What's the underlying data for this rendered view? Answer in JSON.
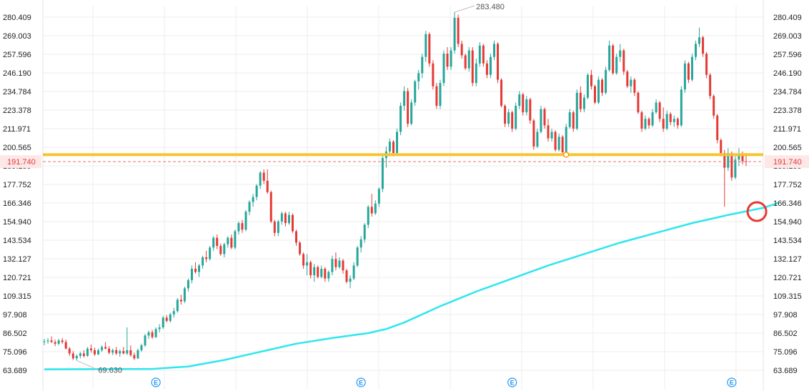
{
  "chart_data": {
    "type": "candlestick",
    "y_axis": {
      "ticks": [
        "63.689",
        "75.096",
        "86.502",
        "97.908",
        "109.315",
        "120.721",
        "132.127",
        "143.534",
        "154.940",
        "166.346",
        "177.752",
        "189.159",
        "200.565",
        "211.971",
        "223.378",
        "234.784",
        "246.190",
        "257.596",
        "269.003",
        "280.409"
      ],
      "range": [
        63.689,
        285.0
      ]
    },
    "annotations": {
      "high_label": "283.480",
      "high_value": 283.48,
      "low_label": "69.630",
      "low_value": 69.63,
      "current_price_label": "191.740",
      "current_price": 191.74,
      "support_level": 196.0,
      "support_touch_index": 145,
      "circle_index": 198
    },
    "event_markers": {
      "label": "E",
      "indices": [
        31,
        88,
        130,
        191
      ]
    },
    "colors": {
      "up": "#26a69a",
      "down": "#e53935",
      "moving_average": "#2ee6ee",
      "support_line": "#f6c431",
      "price_line": "#e57373",
      "circle": "#e53935",
      "grid": "#eeeeee",
      "event": "#2196f3"
    },
    "candles": [
      [
        81.0,
        83.0,
        79.0,
        81.5
      ],
      [
        81.5,
        83.5,
        80.0,
        82.0
      ],
      [
        82.0,
        84.5,
        80.5,
        81.0
      ],
      [
        81.0,
        82.5,
        78.5,
        80.0
      ],
      [
        80.0,
        83.0,
        79.0,
        82.0
      ],
      [
        82.0,
        83.5,
        80.0,
        81.0
      ],
      [
        81.0,
        82.5,
        76.5,
        77.0
      ],
      [
        77.0,
        78.0,
        72.5,
        74.0
      ],
      [
        74.0,
        75.5,
        70.0,
        71.0
      ],
      [
        71.0,
        73.5,
        69.63,
        72.5
      ],
      [
        72.5,
        75.0,
        71.0,
        74.0
      ],
      [
        74.0,
        76.0,
        71.5,
        72.5
      ],
      [
        72.5,
        78.0,
        72.0,
        77.0
      ],
      [
        77.0,
        79.5,
        74.5,
        76.0
      ],
      [
        76.0,
        77.5,
        72.5,
        73.5
      ],
      [
        73.5,
        77.0,
        73.0,
        76.0
      ],
      [
        76.0,
        79.0,
        75.0,
        78.0
      ],
      [
        78.0,
        81.0,
        76.5,
        77.0
      ],
      [
        77.0,
        78.5,
        73.5,
        74.5
      ],
      [
        74.5,
        77.0,
        73.0,
        76.0
      ],
      [
        76.0,
        78.0,
        73.0,
        74.0
      ],
      [
        74.0,
        76.5,
        72.0,
        75.5
      ],
      [
        75.5,
        78.0,
        73.5,
        74.0
      ],
      [
        74.0,
        90.0,
        73.0,
        76.0
      ],
      [
        76.0,
        79.0,
        72.0,
        73.0
      ],
      [
        73.0,
        74.5,
        70.0,
        71.0
      ],
      [
        71.0,
        77.0,
        70.5,
        76.0
      ],
      [
        76.0,
        80.0,
        75.0,
        79.0
      ],
      [
        79.0,
        86.0,
        78.0,
        85.0
      ],
      [
        85.0,
        88.0,
        83.0,
        87.0
      ],
      [
        87.0,
        88.5,
        83.0,
        84.0
      ],
      [
        84.0,
        90.0,
        83.5,
        89.0
      ],
      [
        89.0,
        92.0,
        87.0,
        90.0
      ],
      [
        90.0,
        97.0,
        89.0,
        96.0
      ],
      [
        96.0,
        97.5,
        93.0,
        94.0
      ],
      [
        94.0,
        99.0,
        93.0,
        98.0
      ],
      [
        98.0,
        102.0,
        96.0,
        100.0
      ],
      [
        100.0,
        108.0,
        99.0,
        107.0
      ],
      [
        107.0,
        110.0,
        104.0,
        106.0
      ],
      [
        106.0,
        115.0,
        105.0,
        114.0
      ],
      [
        114.0,
        120.0,
        112.0,
        119.0
      ],
      [
        119.0,
        128.0,
        117.0,
        126.0
      ],
      [
        126.0,
        130.0,
        123.0,
        124.0
      ],
      [
        124.0,
        129.0,
        121.0,
        128.0
      ],
      [
        128.0,
        134.0,
        126.0,
        133.0
      ],
      [
        133.0,
        137.0,
        130.0,
        132.0
      ],
      [
        132.0,
        140.0,
        131.0,
        139.0
      ],
      [
        139.0,
        146.0,
        137.0,
        145.0
      ],
      [
        145.0,
        147.0,
        138.0,
        140.0
      ],
      [
        140.0,
        141.5,
        134.0,
        135.0
      ],
      [
        135.0,
        142.0,
        133.0,
        141.0
      ],
      [
        141.0,
        146.0,
        139.0,
        145.0
      ],
      [
        145.0,
        147.0,
        138.0,
        139.0
      ],
      [
        139.0,
        150.0,
        138.0,
        149.0
      ],
      [
        149.0,
        155.0,
        147.0,
        154.0
      ],
      [
        154.0,
        156.0,
        148.0,
        150.0
      ],
      [
        150.0,
        162.0,
        149.0,
        161.0
      ],
      [
        161.0,
        168.0,
        159.0,
        167.0
      ],
      [
        167.0,
        172.0,
        164.0,
        170.0
      ],
      [
        170.0,
        178.0,
        168.0,
        177.0
      ],
      [
        177.0,
        186.0,
        175.0,
        185.0
      ],
      [
        185.0,
        187.0,
        178.0,
        180.0
      ],
      [
        180.0,
        187.0,
        172.0,
        173.0
      ],
      [
        173.0,
        174.0,
        154.0,
        155.0
      ],
      [
        155.0,
        156.0,
        146.0,
        148.0
      ],
      [
        148.0,
        156.0,
        146.0,
        155.0
      ],
      [
        155.0,
        161.0,
        153.0,
        160.0
      ],
      [
        160.0,
        161.0,
        152.0,
        154.0
      ],
      [
        154.0,
        161.0,
        153.0,
        159.0
      ],
      [
        159.0,
        160.0,
        148.0,
        149.0
      ],
      [
        149.0,
        150.0,
        140.0,
        142.0
      ],
      [
        142.0,
        143.0,
        134.0,
        135.0
      ],
      [
        135.0,
        136.0,
        126.0,
        128.0
      ],
      [
        128.0,
        135.0,
        122.0,
        130.0
      ],
      [
        130.0,
        131.0,
        120.0,
        122.0
      ],
      [
        122.0,
        129.0,
        118.0,
        127.0
      ],
      [
        127.0,
        128.0,
        120.0,
        121.0
      ],
      [
        121.0,
        128.0,
        120.0,
        126.0
      ],
      [
        126.0,
        127.0,
        118.0,
        120.0
      ],
      [
        120.0,
        125.0,
        118.0,
        124.0
      ],
      [
        124.0,
        134.0,
        122.0,
        132.0
      ],
      [
        132.0,
        136.0,
        125.0,
        127.0
      ],
      [
        127.0,
        133.0,
        126.0,
        131.0
      ],
      [
        131.0,
        132.0,
        123.0,
        125.0
      ],
      [
        125.0,
        126.0,
        117.0,
        118.0
      ],
      [
        118.0,
        122.0,
        114.0,
        120.0
      ],
      [
        120.0,
        130.0,
        119.0,
        128.0
      ],
      [
        128.0,
        140.0,
        127.0,
        139.0
      ],
      [
        139.0,
        146.0,
        136.0,
        144.0
      ],
      [
        144.0,
        154.0,
        142.0,
        153.0
      ],
      [
        153.0,
        165.0,
        151.0,
        164.0
      ],
      [
        164.0,
        172.0,
        158.0,
        160.0
      ],
      [
        160.0,
        168.0,
        159.0,
        166.0
      ],
      [
        166.0,
        176.0,
        164.0,
        175.0
      ],
      [
        175.0,
        196.0,
        173.0,
        194.0
      ],
      [
        194.0,
        201.0,
        188.0,
        198.0
      ],
      [
        198.0,
        206.0,
        195.0,
        204.0
      ],
      [
        204.0,
        205.0,
        195.0,
        197.0
      ],
      [
        197.0,
        212.0,
        196.0,
        210.0
      ],
      [
        210.0,
        228.0,
        208.0,
        226.0
      ],
      [
        226.0,
        238.0,
        223.0,
        235.0
      ],
      [
        235.0,
        237.0,
        213.0,
        215.0
      ],
      [
        215.0,
        230.0,
        214.0,
        228.0
      ],
      [
        228.0,
        242.0,
        226.0,
        241.0
      ],
      [
        241.0,
        248.0,
        236.0,
        246.0
      ],
      [
        246.0,
        258.0,
        243.0,
        256.0
      ],
      [
        256.0,
        272.0,
        253.0,
        270.0
      ],
      [
        270.0,
        271.0,
        250.0,
        252.0
      ],
      [
        252.0,
        254.0,
        236.0,
        238.0
      ],
      [
        238.0,
        240.0,
        224.0,
        226.0
      ],
      [
        226.0,
        242.0,
        224.0,
        240.0
      ],
      [
        240.0,
        260.0,
        238.0,
        258.0
      ],
      [
        258.0,
        262.0,
        248.0,
        250.0
      ],
      [
        250.0,
        262.0,
        248.0,
        260.0
      ],
      [
        260.0,
        283.48,
        258.0,
        280.0
      ],
      [
        280.0,
        282.0,
        262.0,
        264.0
      ],
      [
        264.0,
        266.0,
        255.0,
        257.0
      ],
      [
        257.0,
        258.0,
        248.0,
        249.0
      ],
      [
        249.0,
        262.0,
        247.0,
        260.0
      ],
      [
        260.0,
        262.0,
        238.0,
        240.0
      ],
      [
        240.0,
        255.0,
        238.0,
        252.0
      ],
      [
        252.0,
        265.0,
        250.0,
        263.0
      ],
      [
        263.0,
        264.0,
        250.0,
        252.0
      ],
      [
        252.0,
        254.0,
        243.0,
        245.0
      ],
      [
        245.0,
        258.0,
        243.0,
        256.0
      ],
      [
        256.0,
        266.0,
        254.0,
        264.0
      ],
      [
        264.0,
        265.0,
        240.0,
        242.0
      ],
      [
        242.0,
        243.0,
        225.0,
        226.0
      ],
      [
        226.0,
        227.0,
        213.0,
        215.0
      ],
      [
        215.0,
        224.0,
        213.0,
        222.0
      ],
      [
        222.0,
        223.0,
        210.0,
        212.0
      ],
      [
        212.0,
        228.0,
        211.0,
        226.0
      ],
      [
        226.0,
        235.0,
        224.0,
        233.0
      ],
      [
        233.0,
        234.0,
        220.0,
        222.0
      ],
      [
        222.0,
        232.0,
        220.0,
        230.0
      ],
      [
        230.0,
        231.0,
        215.0,
        217.0
      ],
      [
        217.0,
        218.0,
        199.0,
        201.0
      ],
      [
        201.0,
        212.0,
        200.0,
        210.0
      ],
      [
        210.0,
        226.0,
        209.0,
        224.0
      ],
      [
        224.0,
        225.0,
        212.0,
        214.0
      ],
      [
        214.0,
        218.0,
        204.0,
        206.0
      ],
      [
        206.0,
        212.0,
        204.0,
        210.0
      ],
      [
        210.0,
        211.0,
        198.0,
        199.0
      ],
      [
        199.0,
        209.0,
        198.0,
        207.0
      ],
      [
        207.0,
        208.0,
        196.0,
        197.5
      ],
      [
        197.5,
        215.0,
        197.0,
        213.0
      ],
      [
        213.0,
        224.0,
        212.0,
        222.0
      ],
      [
        222.0,
        223.0,
        210.0,
        212.0
      ],
      [
        212.0,
        236.0,
        211.0,
        234.0
      ],
      [
        234.0,
        238.0,
        222.0,
        224.0
      ],
      [
        224.0,
        233.0,
        222.0,
        231.0
      ],
      [
        231.0,
        246.0,
        230.0,
        245.0
      ],
      [
        245.0,
        248.0,
        236.0,
        238.0
      ],
      [
        238.0,
        239.0,
        227.0,
        228.0
      ],
      [
        228.0,
        244.0,
        227.0,
        242.0
      ],
      [
        242.0,
        243.0,
        232.0,
        234.0
      ],
      [
        234.0,
        250.0,
        233.0,
        248.0
      ],
      [
        248.0,
        266.0,
        247.0,
        263.0
      ],
      [
        263.0,
        264.0,
        245.0,
        246.0
      ],
      [
        246.0,
        258.0,
        245.0,
        256.0
      ],
      [
        256.0,
        264.0,
        253.0,
        260.0
      ],
      [
        260.0,
        261.0,
        245.0,
        247.0
      ],
      [
        247.0,
        248.0,
        237.0,
        238.0
      ],
      [
        238.0,
        244.0,
        234.0,
        242.0
      ],
      [
        242.0,
        243.0,
        232.0,
        234.0
      ],
      [
        234.0,
        235.0,
        221.0,
        222.0
      ],
      [
        222.0,
        223.0,
        210.0,
        212.0
      ],
      [
        212.0,
        220.0,
        211.0,
        218.0
      ],
      [
        218.0,
        219.0,
        212.0,
        214.0
      ],
      [
        214.0,
        224.0,
        213.0,
        222.0
      ],
      [
        222.0,
        230.0,
        221.0,
        228.0
      ],
      [
        228.0,
        229.0,
        216.0,
        218.0
      ],
      [
        218.0,
        225.0,
        210.0,
        212.0
      ],
      [
        212.0,
        223.0,
        211.0,
        221.0
      ],
      [
        221.0,
        222.0,
        214.0,
        216.0
      ],
      [
        216.0,
        220.0,
        213.0,
        218.0
      ],
      [
        218.0,
        219.0,
        212.0,
        214.0
      ],
      [
        214.0,
        238.0,
        213.0,
        236.0
      ],
      [
        236.0,
        254.0,
        234.0,
        252.0
      ],
      [
        252.0,
        253.0,
        240.0,
        242.0
      ],
      [
        242.0,
        258.0,
        241.0,
        256.0
      ],
      [
        256.0,
        266.0,
        254.0,
        264.0
      ],
      [
        264.0,
        274.0,
        262.0,
        268.0
      ],
      [
        268.0,
        269.0,
        256.0,
        258.0
      ],
      [
        258.0,
        259.0,
        243.0,
        245.0
      ],
      [
        245.0,
        246.0,
        230.0,
        232.0
      ],
      [
        232.0,
        233.0,
        218.0,
        220.0
      ],
      [
        220.0,
        221.0,
        203.0,
        205.0
      ],
      [
        205.0,
        206.0,
        195.0,
        197.0
      ],
      [
        197.0,
        199.0,
        164.0,
        188.0
      ],
      [
        188.0,
        200.0,
        186.0,
        197.0
      ],
      [
        197.0,
        198.0,
        180.0,
        182.0
      ],
      [
        182.0,
        195.0,
        181.0,
        193.0
      ],
      [
        193.0,
        200.0,
        189.0,
        196.0
      ],
      [
        196.0,
        198.0,
        190.0,
        192.0
      ],
      [
        192.0,
        197.0,
        189.0,
        191.74
      ]
    ],
    "moving_average": [
      [
        0,
        64.3
      ],
      [
        30,
        64.5
      ],
      [
        40,
        66.0
      ],
      [
        50,
        70.0
      ],
      [
        60,
        75.0
      ],
      [
        70,
        80.0
      ],
      [
        80,
        83.5
      ],
      [
        90,
        86.5
      ],
      [
        95,
        89.0
      ],
      [
        100,
        93.0
      ],
      [
        110,
        103.0
      ],
      [
        120,
        112.0
      ],
      [
        130,
        120.0
      ],
      [
        140,
        128.0
      ],
      [
        150,
        135.0
      ],
      [
        160,
        142.0
      ],
      [
        170,
        148.0
      ],
      [
        180,
        154.0
      ],
      [
        190,
        159.0
      ],
      [
        200,
        163.5
      ],
      [
        204,
        166.5
      ]
    ]
  }
}
